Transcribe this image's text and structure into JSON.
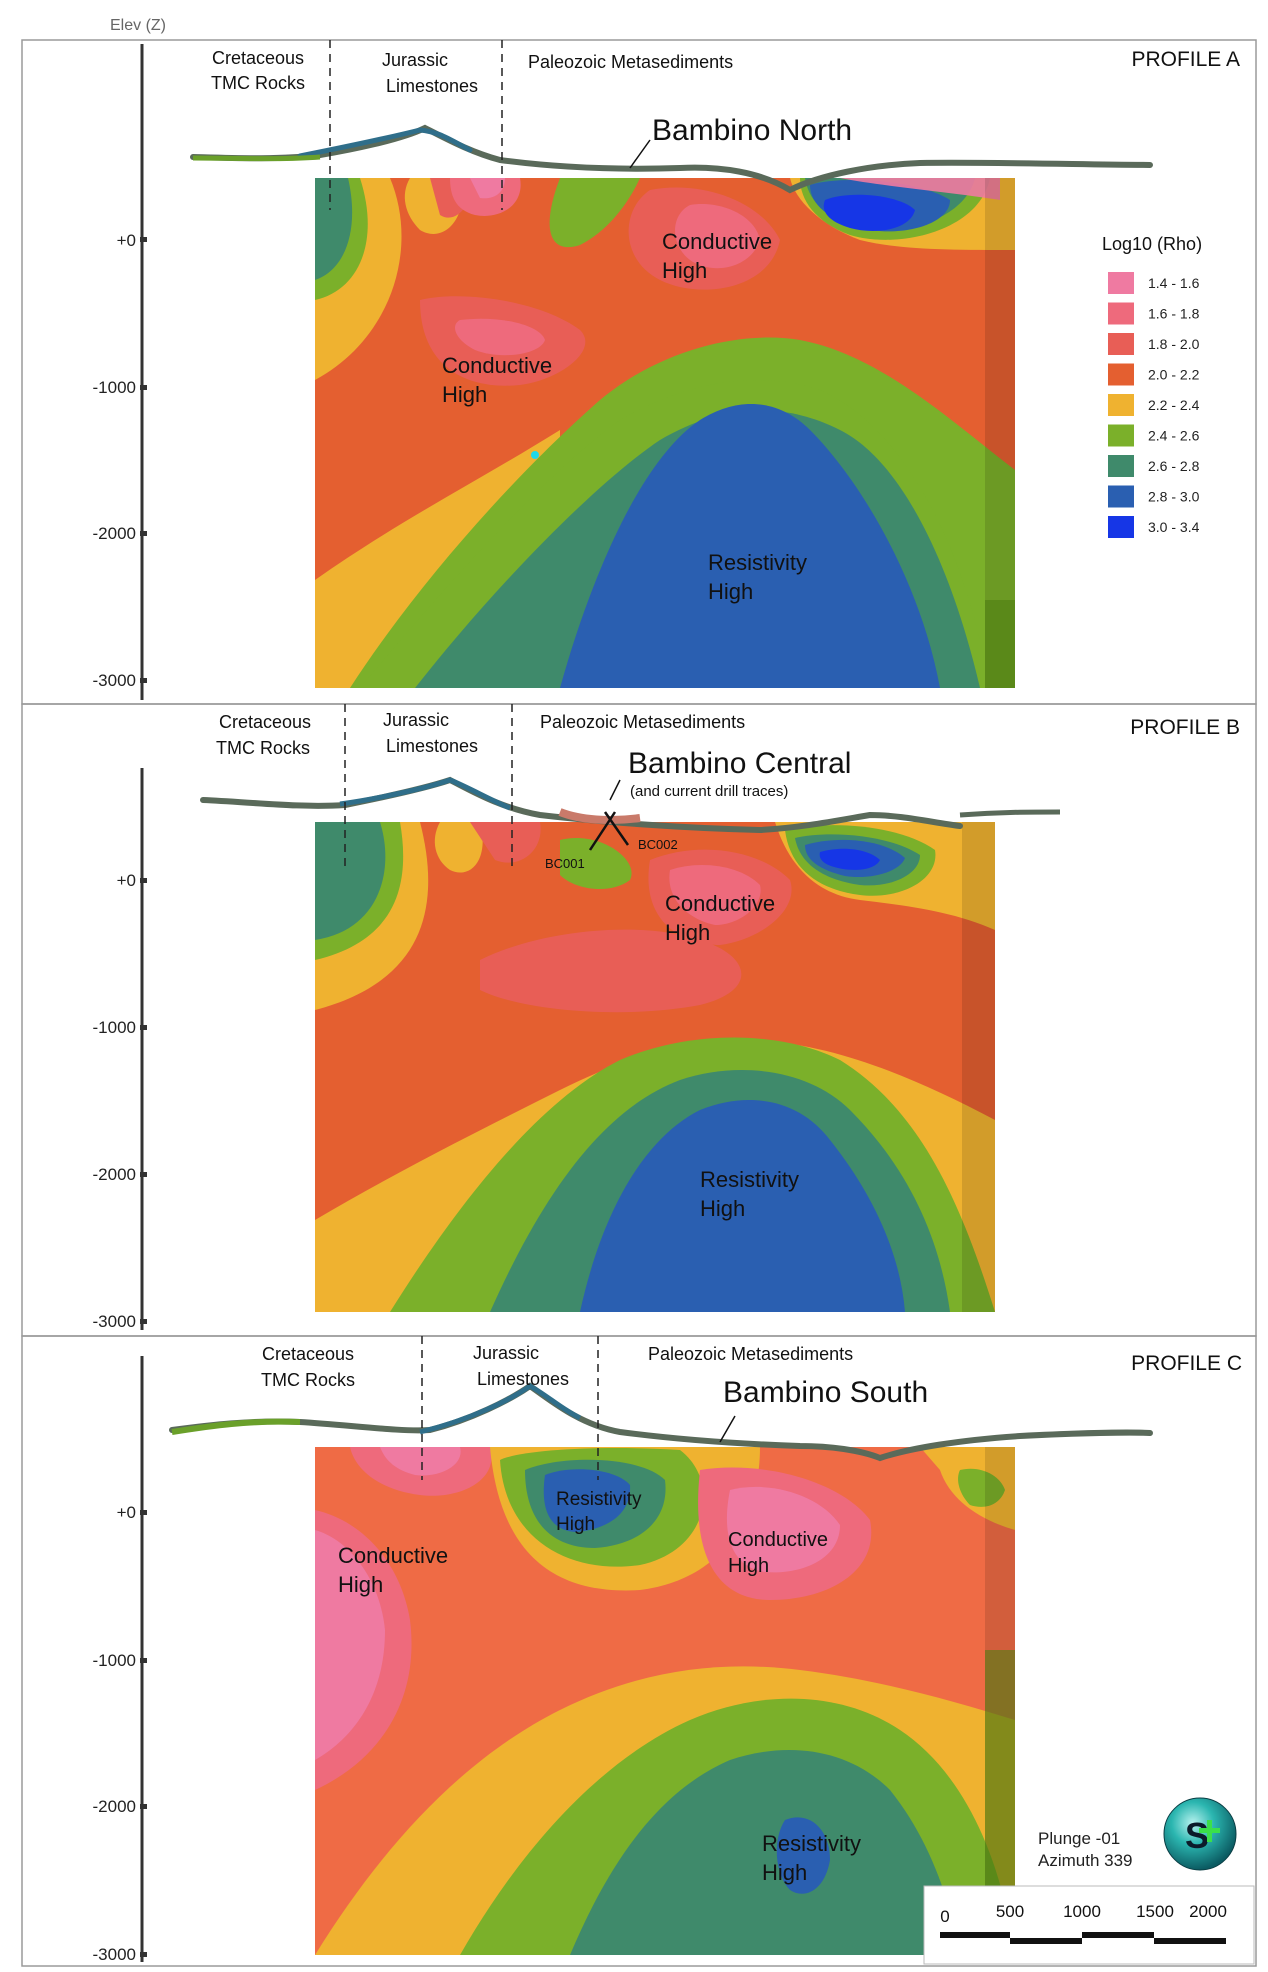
{
  "axis": {
    "title": "Elev (Z)",
    "ticks": [
      "+0",
      "-1000",
      "-2000",
      "-3000"
    ]
  },
  "units": {
    "cretaceous": [
      "Cretaceous",
      "TMC Rocks"
    ],
    "jurassic": [
      "Jurassic",
      "Limestones"
    ],
    "paleozoic": "Paleozoic Metasediments"
  },
  "profiles": [
    {
      "name": "PROFILE A",
      "target": "Bambino North",
      "anomalies": [
        [
          "Conductive",
          "High"
        ],
        [
          "Conductive",
          "High"
        ],
        [
          "Resistivity",
          "High"
        ]
      ]
    },
    {
      "name": "PROFILE B",
      "target": "Bambino Central",
      "target_note": "(and current drill traces)",
      "drillholes": [
        "BC001",
        "BC002"
      ],
      "anomalies": [
        [
          "Conductive",
          "High"
        ],
        [
          "Resistivity",
          "High"
        ]
      ]
    },
    {
      "name": "PROFILE C",
      "target": "Bambino South",
      "anomalies": [
        [
          "Resistivity",
          "High"
        ],
        [
          "Conductive",
          "High"
        ],
        [
          "Conductive",
          "High"
        ],
        [
          "Resistivity",
          "High"
        ]
      ]
    }
  ],
  "legend": {
    "title": "Log10 (Rho)",
    "items": [
      {
        "label": "1.4 - 1.6",
        "color": "#ef7aa1"
      },
      {
        "label": "1.6 - 1.8",
        "color": "#ee6a7c"
      },
      {
        "label": "1.8 - 2.0",
        "color": "#e85e56"
      },
      {
        "label": "2.0 - 2.2",
        "color": "#e45f30"
      },
      {
        "label": "2.2 - 2.4",
        "color": "#efb230"
      },
      {
        "label": "2.4 - 2.6",
        "color": "#7bb02a"
      },
      {
        "label": "2.6 - 2.8",
        "color": "#3f8a6b"
      },
      {
        "label": "2.8 - 3.0",
        "color": "#2a5fb1"
      },
      {
        "label": "3.0 - 3.4",
        "color": "#1636e6"
      }
    ]
  },
  "view": {
    "plunge": "Plunge -01",
    "azimuth": "Azimuth 339"
  },
  "scale_bar": {
    "labels": [
      "0",
      "500",
      "1000",
      "1500",
      "2000"
    ]
  },
  "logo": {
    "text": "S"
  }
}
